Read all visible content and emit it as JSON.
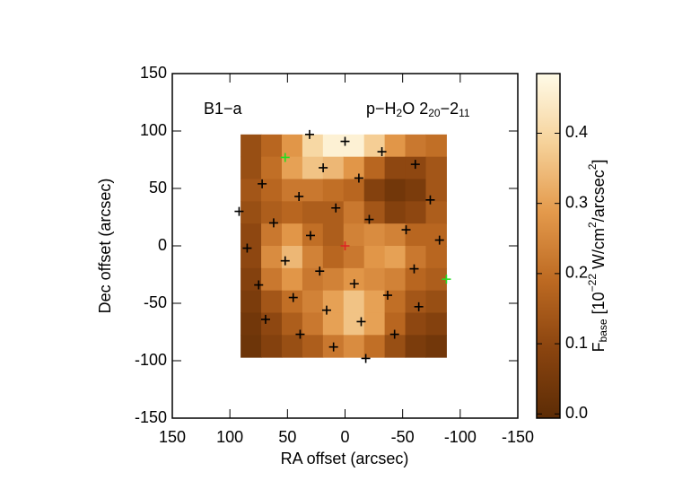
{
  "chart_data": {
    "type": "heatmap",
    "xlabel": "RA offset (arcsec)",
    "ylabel": "Dec offset (arcsec)",
    "xlim": [
      150,
      -150
    ],
    "ylim": [
      -150,
      150
    ],
    "xticks": [
      150,
      100,
      50,
      0,
      -50,
      -100,
      -150
    ],
    "yticks": [
      -150,
      -100,
      -50,
      0,
      50,
      100,
      150
    ],
    "annotations": [
      {
        "segments": [
          {
            "text": "B1−a"
          }
        ]
      },
      {
        "segments": [
          {
            "text": "p−H"
          },
          {
            "text": "2",
            "style": "sub"
          },
          {
            "text": "O 2"
          },
          {
            "text": "20",
            "style": "sub"
          },
          {
            "text": "−2"
          },
          {
            "text": "11",
            "style": "sub"
          }
        ]
      }
    ],
    "heatmap": {
      "extent": [
        90.7,
        -88,
        97,
        -97
      ],
      "z": [
        [
          0.12,
          0.18,
          0.28,
          0.4,
          0.46,
          0.46,
          0.38,
          0.28,
          0.22,
          0.2
        ],
        [
          0.12,
          0.2,
          0.3,
          0.36,
          0.34,
          0.28,
          0.18,
          0.1,
          0.1,
          0.14
        ],
        [
          0.14,
          0.18,
          0.22,
          0.22,
          0.2,
          0.18,
          0.08,
          0.04,
          0.06,
          0.14
        ],
        [
          0.12,
          0.16,
          0.18,
          0.16,
          0.16,
          0.22,
          0.14,
          0.08,
          0.1,
          0.16
        ],
        [
          0.1,
          0.22,
          0.28,
          0.2,
          0.16,
          0.24,
          0.26,
          0.24,
          0.18,
          0.18
        ],
        [
          0.1,
          0.26,
          0.34,
          0.24,
          0.18,
          0.22,
          0.28,
          0.3,
          0.22,
          0.18
        ],
        [
          0.08,
          0.22,
          0.28,
          0.22,
          0.24,
          0.28,
          0.26,
          0.24,
          0.18,
          0.16
        ],
        [
          0.06,
          0.14,
          0.2,
          0.24,
          0.3,
          0.36,
          0.3,
          0.2,
          0.14,
          0.12
        ],
        [
          0.04,
          0.1,
          0.16,
          0.22,
          0.3,
          0.36,
          0.3,
          0.18,
          0.1,
          0.08
        ],
        [
          0.03,
          0.08,
          0.12,
          0.16,
          0.22,
          0.26,
          0.2,
          0.12,
          0.06,
          0.04
        ]
      ]
    },
    "colormap": [
      "#5c2c06",
      "#8a440f",
      "#bd6a22",
      "#e49a4c",
      "#f6d29a",
      "#fffbe8"
    ],
    "clim": [
      -0.006,
      0.485
    ],
    "cticks": [
      {
        "value": 0,
        "label": "0.0"
      },
      0.1,
      0.2,
      0.3,
      0.4
    ],
    "colorbar_label": [
      {
        "text": "F"
      },
      {
        "text": "base",
        "style": "sub"
      },
      {
        "text": " [10"
      },
      {
        "text": "−22",
        "style": "sup"
      },
      {
        "text": " W/cm"
      },
      {
        "text": "2",
        "style": "sup"
      },
      {
        "text": "/arcsec"
      },
      {
        "text": "2",
        "style": "sup"
      },
      {
        "text": "]"
      }
    ],
    "series": [
      {
        "color": "#000000",
        "x": [
          30.8,
          0,
          -32,
          19,
          -61,
          72,
          -12,
          40,
          -74,
          8,
          92,
          -21,
          62,
          -53,
          30,
          85,
          -82,
          52,
          -60,
          22,
          75,
          -8,
          45,
          -37,
          16,
          -64,
          69,
          -14,
          39,
          -43,
          10,
          -18
        ],
        "y": [
          97,
          91,
          82,
          68,
          71,
          54,
          59,
          43,
          40,
          33,
          30,
          23,
          20,
          14,
          9,
          -2,
          5,
          -13,
          -20,
          -22,
          -34,
          -33,
          -45,
          -43,
          -56,
          -53,
          -64,
          -66,
          -77,
          -77,
          -88,
          -98
        ]
      },
      {
        "color": "#22dd22",
        "x": [
          52,
          -88
        ],
        "y": [
          77,
          -29
        ]
      },
      {
        "color": "#dd2222",
        "x": [
          0
        ],
        "y": [
          0
        ]
      }
    ]
  }
}
